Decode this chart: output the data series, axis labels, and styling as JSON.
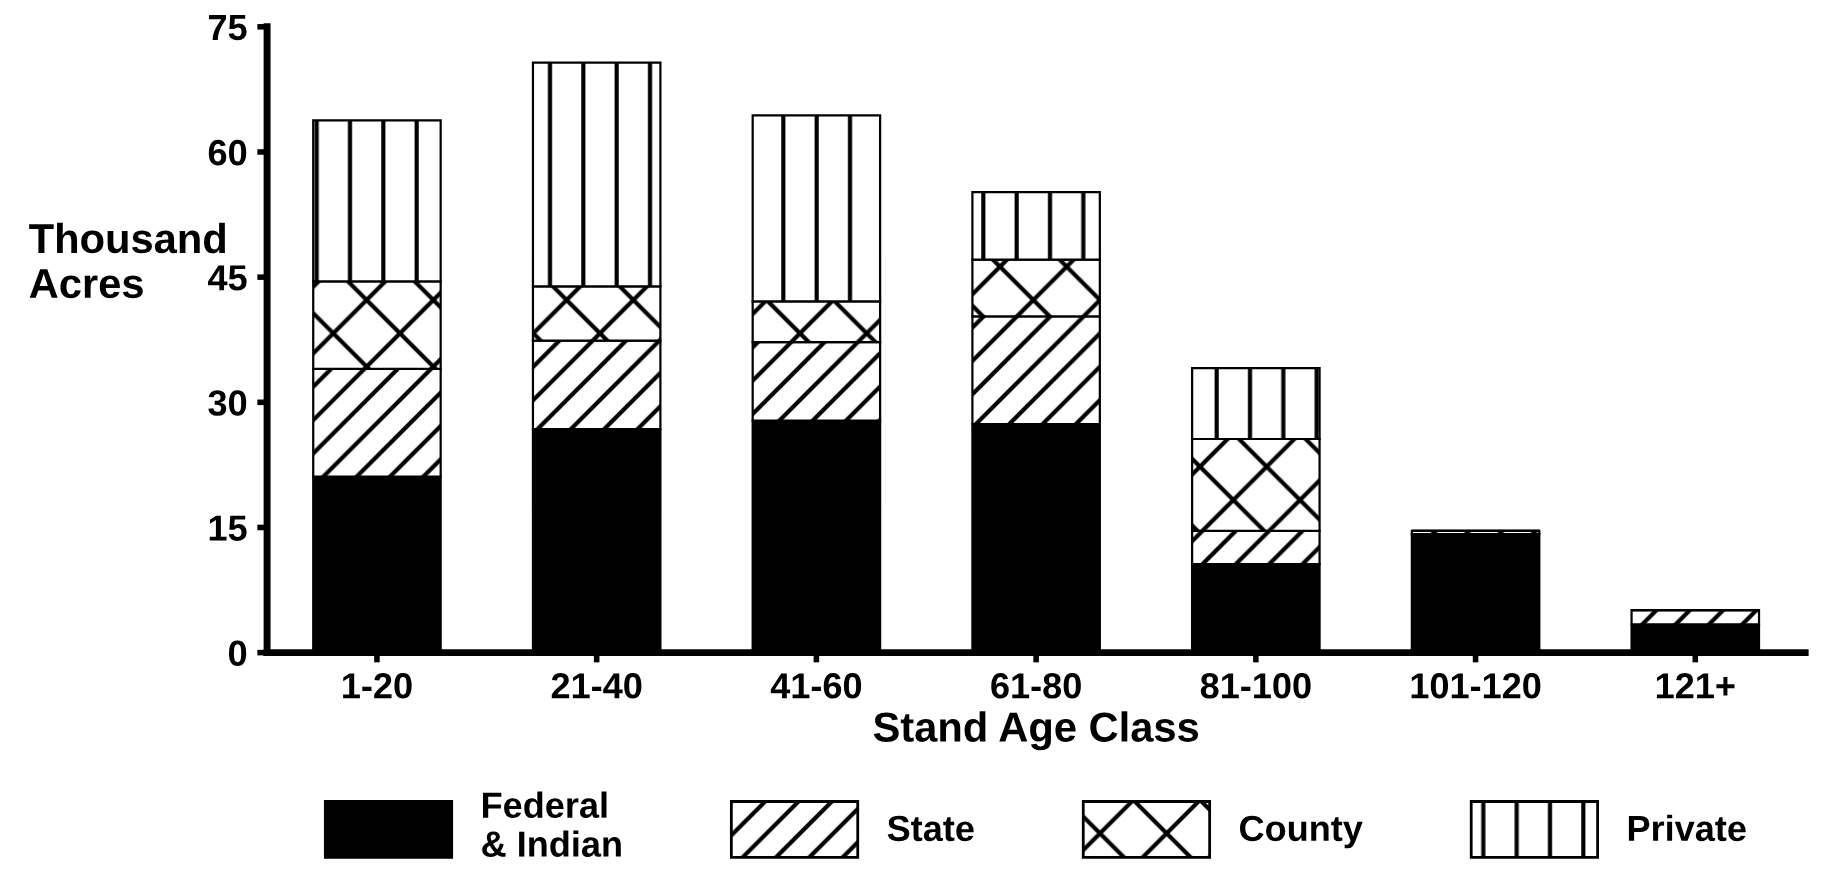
{
  "chart_data": {
    "type": "bar",
    "stacked": true,
    "xlabel": "Stand Age Class",
    "ylabel": "Thousand\nAcres",
    "categories": [
      "1-20",
      "21-40",
      "41-60",
      "61-80",
      "81-100",
      "101-120",
      "121+"
    ],
    "series": [
      {
        "name": "Federal\n& Indian",
        "color": "#000000",
        "values": [
          21.1,
          26.8,
          27.8,
          27.4,
          10.6,
          14.2,
          3.4
        ]
      },
      {
        "name": "State",
        "color": "#000000",
        "values": [
          12.9,
          10.6,
          9.4,
          12.9,
          4.0,
          0.4,
          1.7
        ]
      },
      {
        "name": "County",
        "color": "#000000",
        "values": [
          10.5,
          6.5,
          4.9,
          6.8,
          11.0,
          0,
          0
        ]
      },
      {
        "name": "Private",
        "color": "#000000",
        "values": [
          19.3,
          26.8,
          22.3,
          8.1,
          8.5,
          0,
          0
        ]
      }
    ],
    "ylim": [
      0,
      75
    ],
    "yticks": [
      0,
      15,
      30,
      45,
      60,
      75
    ],
    "grid": false,
    "legend": "bottom"
  }
}
